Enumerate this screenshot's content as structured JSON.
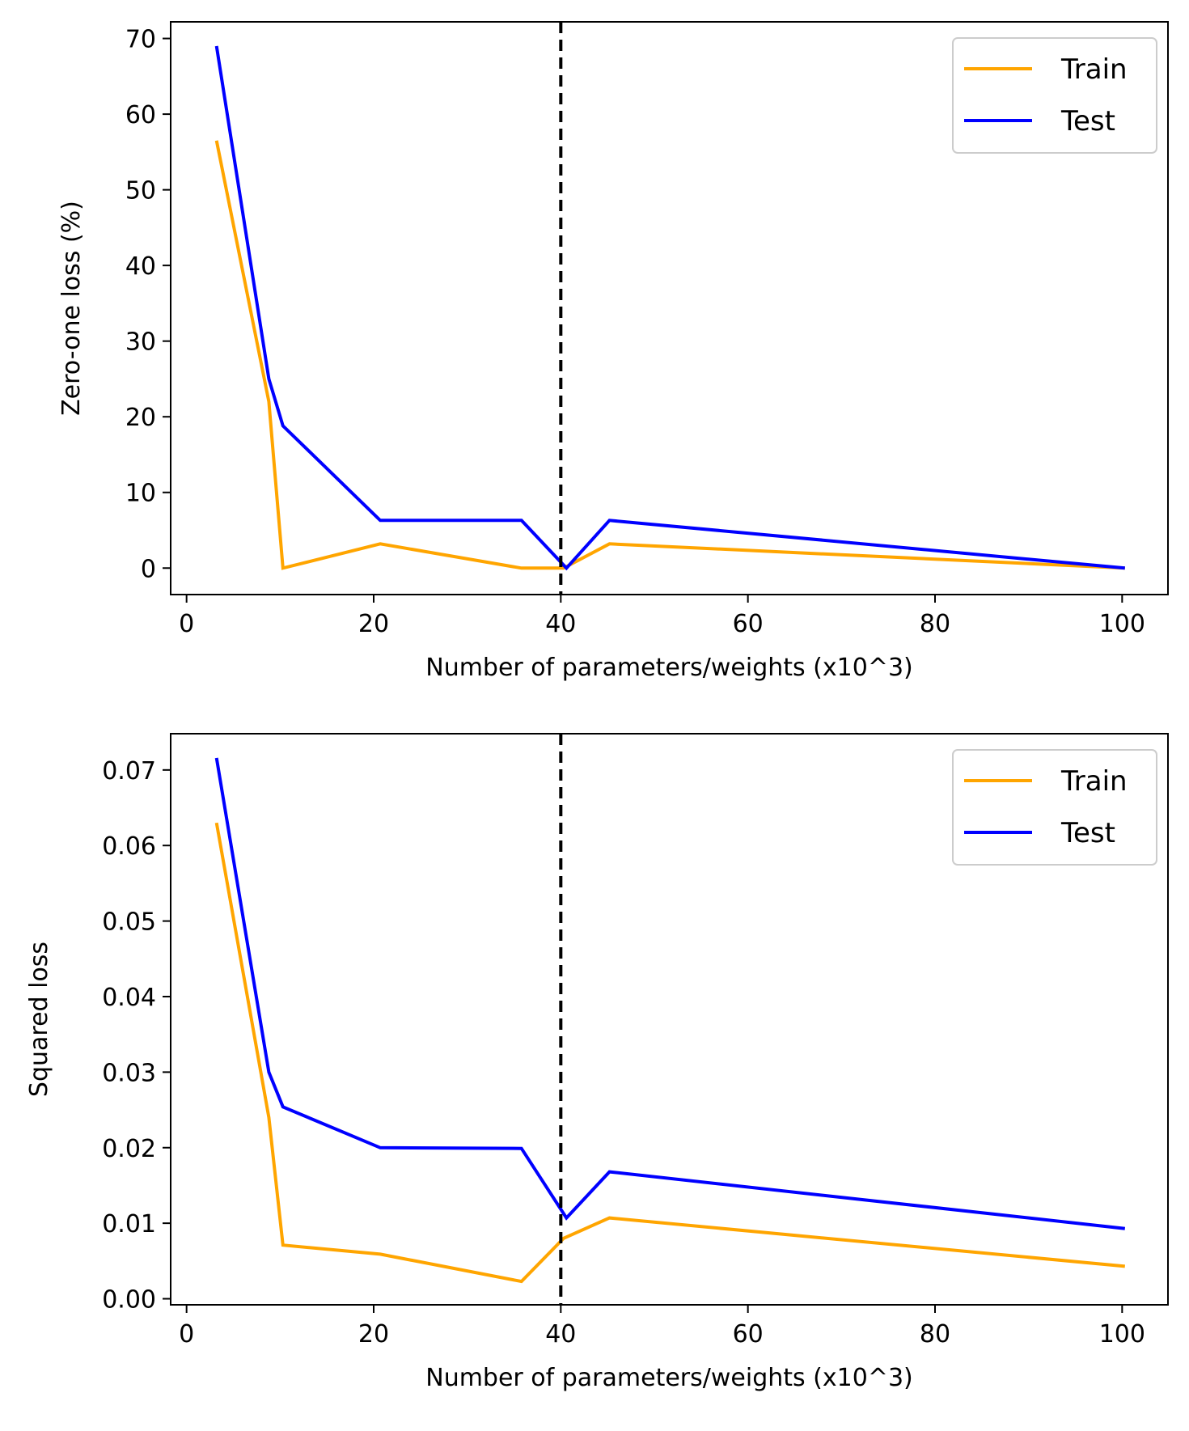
{
  "chart_data": [
    {
      "type": "line",
      "xlabel": "Number of parameters/weights (x10^3)",
      "ylabel": "Zero-one loss (%)",
      "xlim": [
        -1.7,
        104.9
      ],
      "ylim": [
        -3.5,
        72.2
      ],
      "xticks": [
        0,
        20,
        40,
        60,
        80,
        100
      ],
      "xtick_labels": [
        "0",
        "20",
        "40",
        "60",
        "80",
        "100"
      ],
      "yticks": [
        0,
        10,
        20,
        30,
        40,
        50,
        60,
        70
      ],
      "ytick_labels": [
        "0",
        "10",
        "20",
        "30",
        "40",
        "50",
        "60",
        "70"
      ],
      "vline": {
        "x": 40,
        "color": "#000000",
        "style": "dashed"
      },
      "legend_position": "top-right",
      "grid": false,
      "series": [
        {
          "name": "Train",
          "color": "#FFA500",
          "x": [
            3.2,
            8.8,
            10.3,
            20.7,
            35.8,
            40.3,
            45.2,
            100.3
          ],
          "y": [
            56.5,
            22.0,
            0.0,
            3.2,
            0.0,
            0.0,
            3.2,
            0.0
          ]
        },
        {
          "name": "Test",
          "color": "#0000FF",
          "x": [
            3.2,
            8.8,
            10.3,
            20.7,
            35.8,
            40.6,
            45.2,
            100.3
          ],
          "y": [
            69.0,
            25.0,
            18.8,
            6.3,
            6.3,
            0.0,
            6.3,
            0.0
          ]
        }
      ]
    },
    {
      "type": "line",
      "xlabel": "Number of parameters/weights (x10^3)",
      "ylabel": "Squared loss",
      "xlim": [
        -1.7,
        104.9
      ],
      "ylim": [
        -0.0008,
        0.0748
      ],
      "xticks": [
        0,
        20,
        40,
        60,
        80,
        100
      ],
      "xtick_labels": [
        "0",
        "20",
        "40",
        "60",
        "80",
        "100"
      ],
      "yticks": [
        0.0,
        0.01,
        0.02,
        0.03,
        0.04,
        0.05,
        0.06,
        0.07
      ],
      "ytick_labels": [
        "0.00",
        "0.01",
        "0.02",
        "0.03",
        "0.04",
        "0.05",
        "0.06",
        "0.07"
      ],
      "vline": {
        "x": 40,
        "color": "#000000",
        "style": "dashed"
      },
      "legend_position": "top-right",
      "grid": false,
      "series": [
        {
          "name": "Train",
          "color": "#FFA500",
          "x": [
            3.2,
            8.8,
            10.3,
            20.7,
            35.8,
            40.3,
            45.2,
            100.3
          ],
          "y": [
            0.063,
            0.024,
            0.0071,
            0.0059,
            0.0023,
            0.008,
            0.0107,
            0.0043
          ]
        },
        {
          "name": "Test",
          "color": "#0000FF",
          "x": [
            3.2,
            8.8,
            10.3,
            20.7,
            35.8,
            40.6,
            45.2,
            100.3
          ],
          "y": [
            0.0716,
            0.03,
            0.0254,
            0.02,
            0.0199,
            0.0107,
            0.0168,
            0.0093
          ]
        }
      ]
    }
  ]
}
